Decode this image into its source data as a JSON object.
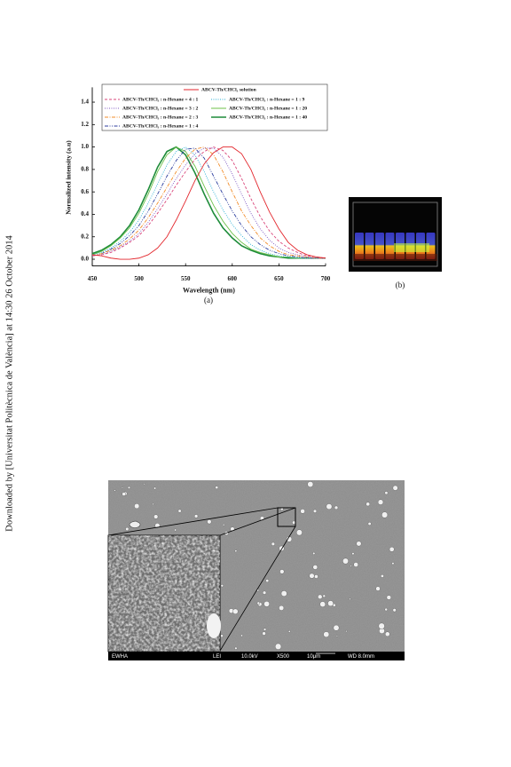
{
  "side_note": "Downloaded by [Universitat Politècnica de València] at 14:30 26 October 2014",
  "panel_labels": [
    "(a)",
    "(b)"
  ],
  "sem_bar": [
    "EWHA",
    "LEI",
    "10.0kV",
    "X500",
    "10μm",
    "WD 8.0mm"
  ],
  "chart_data": {
    "type": "line",
    "xlabel": "Wavelength (nm)",
    "ylabel": "Normalized intensity (a.u)",
    "x": [
      450,
      460,
      470,
      480,
      490,
      500,
      510,
      520,
      530,
      540,
      550,
      560,
      570,
      580,
      590,
      600,
      610,
      620,
      630,
      640,
      650,
      660,
      670,
      680,
      690,
      700
    ],
    "xlim": [
      450,
      700
    ],
    "xticks": [
      450,
      500,
      550,
      600,
      650,
      700
    ],
    "ylim": [
      -0.06,
      1.5
    ],
    "yticks": [
      {
        "value": 0,
        "label": "0.0"
      },
      0.2,
      0.4,
      0.6,
      0.8,
      {
        "value": 1,
        "label": "1.0"
      },
      1.2,
      1.4
    ],
    "series": [
      {
        "name": "ABCV-Th/CHCl₃ solution",
        "color": "#e3262c",
        "linestyle": "solid",
        "values": [
          0.04,
          0.03,
          0.01,
          0,
          0,
          0.01,
          0.04,
          0.1,
          0.2,
          0.35,
          0.52,
          0.7,
          0.85,
          0.95,
          1,
          1,
          0.94,
          0.8,
          0.6,
          0.42,
          0.27,
          0.15,
          0.08,
          0.04,
          0.02,
          0.01
        ]
      },
      {
        "name": "ABCV-Th/CHCl₃ : n-Hexane = 4 : 1",
        "color": "#d9467a",
        "linestyle": "dashed",
        "values": [
          0.03,
          0.04,
          0.06,
          0.1,
          0.15,
          0.21,
          0.3,
          0.41,
          0.53,
          0.66,
          0.78,
          0.89,
          0.96,
          1,
          0.97,
          0.88,
          0.72,
          0.54,
          0.38,
          0.25,
          0.16,
          0.1,
          0.06,
          0.03,
          0.02,
          0.01
        ]
      },
      {
        "name": "ABCV-Th/CHCl₃ : n-Hexane = 3 : 2",
        "color": "#7e57c2",
        "linestyle": "dotted",
        "values": [
          0.03,
          0.04,
          0.07,
          0.11,
          0.16,
          0.23,
          0.33,
          0.45,
          0.58,
          0.72,
          0.84,
          0.94,
          0.99,
          0.99,
          0.91,
          0.76,
          0.58,
          0.41,
          0.27,
          0.17,
          0.1,
          0.06,
          0.04,
          0.02,
          0.01,
          0.01
        ]
      },
      {
        "name": "ABCV-Th/CHCl₃ : n-Hexane = 2 : 3",
        "color": "#f28c28",
        "linestyle": "dashdot",
        "values": [
          0.03,
          0.05,
          0.08,
          0.12,
          0.18,
          0.26,
          0.37,
          0.5,
          0.64,
          0.78,
          0.9,
          0.98,
          1,
          0.93,
          0.78,
          0.6,
          0.43,
          0.3,
          0.19,
          0.12,
          0.07,
          0.04,
          0.03,
          0.02,
          0.01,
          0.01
        ]
      },
      {
        "name": "ABCV-Th/CHCl₃ : n-Hexane = 1 : 4",
        "color": "#2c3e9e",
        "linestyle": "dashdotdot",
        "values": [
          0.03,
          0.05,
          0.09,
          0.14,
          0.21,
          0.3,
          0.43,
          0.58,
          0.74,
          0.88,
          0.98,
          0.99,
          0.9,
          0.74,
          0.58,
          0.43,
          0.3,
          0.2,
          0.13,
          0.08,
          0.05,
          0.03,
          0.02,
          0.01,
          0.01,
          0.01
        ]
      },
      {
        "name": "ABCV-Th/CHCl₃ : n-Hexane = 1 : 9",
        "color": "#2ab0d6",
        "linestyle": "dotted",
        "values": [
          0.04,
          0.06,
          0.1,
          0.16,
          0.24,
          0.35,
          0.5,
          0.67,
          0.84,
          0.96,
          1,
          0.93,
          0.78,
          0.6,
          0.44,
          0.31,
          0.21,
          0.13,
          0.08,
          0.05,
          0.03,
          0.02,
          0.01,
          0.01,
          0.01,
          0.01
        ]
      },
      {
        "name": "ABCV-Th/CHCl₃ : n-Hexane = 1 : 20",
        "color": "#6cc04a",
        "linestyle": "solid",
        "values": [
          0.04,
          0.07,
          0.12,
          0.19,
          0.28,
          0.41,
          0.58,
          0.78,
          0.93,
          1,
          0.96,
          0.83,
          0.65,
          0.48,
          0.34,
          0.23,
          0.15,
          0.09,
          0.06,
          0.04,
          0.02,
          0.02,
          0.01,
          0.01,
          0.01,
          0.01
        ]
      },
      {
        "name": "ABCV-Th/CHCl₃ : n-Hexane = 1 : 40",
        "color": "#1e8c3a",
        "linestyle": "thick",
        "values": [
          0.05,
          0.08,
          0.13,
          0.2,
          0.3,
          0.44,
          0.62,
          0.82,
          0.96,
          1,
          0.93,
          0.77,
          0.58,
          0.41,
          0.28,
          0.19,
          0.12,
          0.08,
          0.05,
          0.03,
          0.02,
          0.01,
          0.01,
          0.01,
          0.01,
          0.01
        ]
      }
    ]
  }
}
